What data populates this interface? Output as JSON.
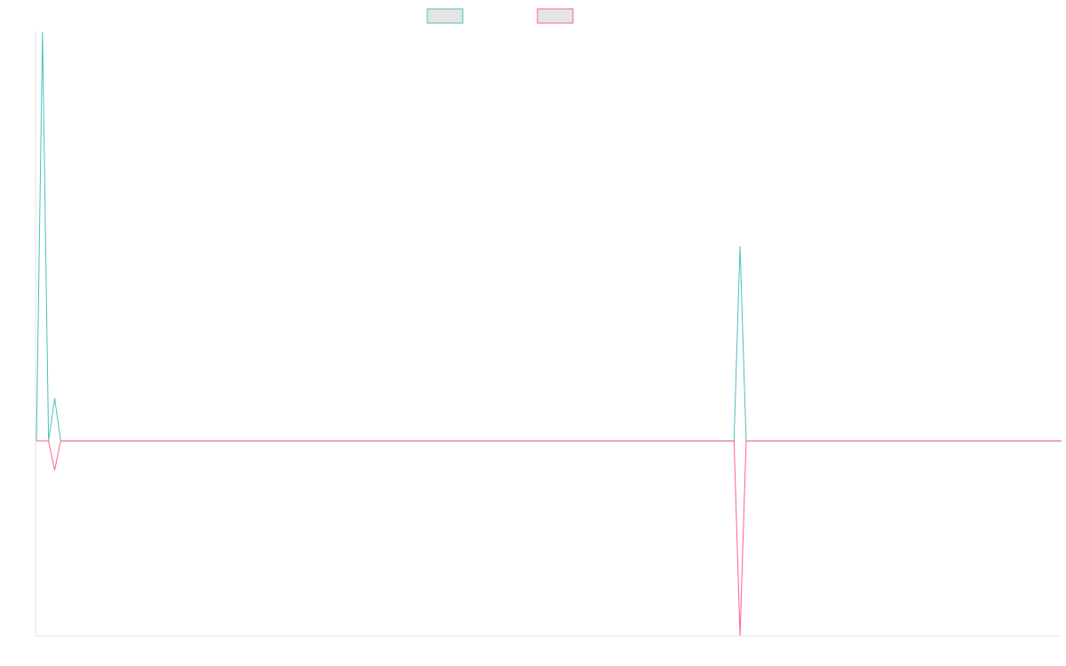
{
  "colors": {
    "series_a": "#4bc0c0",
    "series_b": "#ff6384",
    "legend_fill": "#e5e5e5",
    "axis": "#e6e6e6"
  },
  "chart_data": {
    "type": "line",
    "title": "",
    "xlabel": "",
    "ylabel": "",
    "x_count": 170,
    "ylim": [
      -1,
      2.1
    ],
    "grid": false,
    "legend_position": "top",
    "series": [
      {
        "color": "#4bc0c0",
        "points": [
          [
            0,
            0
          ],
          [
            1,
            2.1
          ],
          [
            2,
            0
          ],
          [
            3,
            0.22
          ],
          [
            4,
            0
          ],
          [
            115,
            0
          ],
          [
            116,
            1.0
          ],
          [
            117,
            0
          ],
          [
            169,
            0
          ]
        ]
      },
      {
        "color": "#ff6384",
        "points": [
          [
            0,
            0
          ],
          [
            1,
            0
          ],
          [
            2,
            0
          ],
          [
            3,
            -0.15
          ],
          [
            4,
            0
          ],
          [
            115,
            0
          ],
          [
            116,
            -1
          ],
          [
            117,
            0
          ],
          [
            169,
            0
          ]
        ]
      }
    ]
  }
}
